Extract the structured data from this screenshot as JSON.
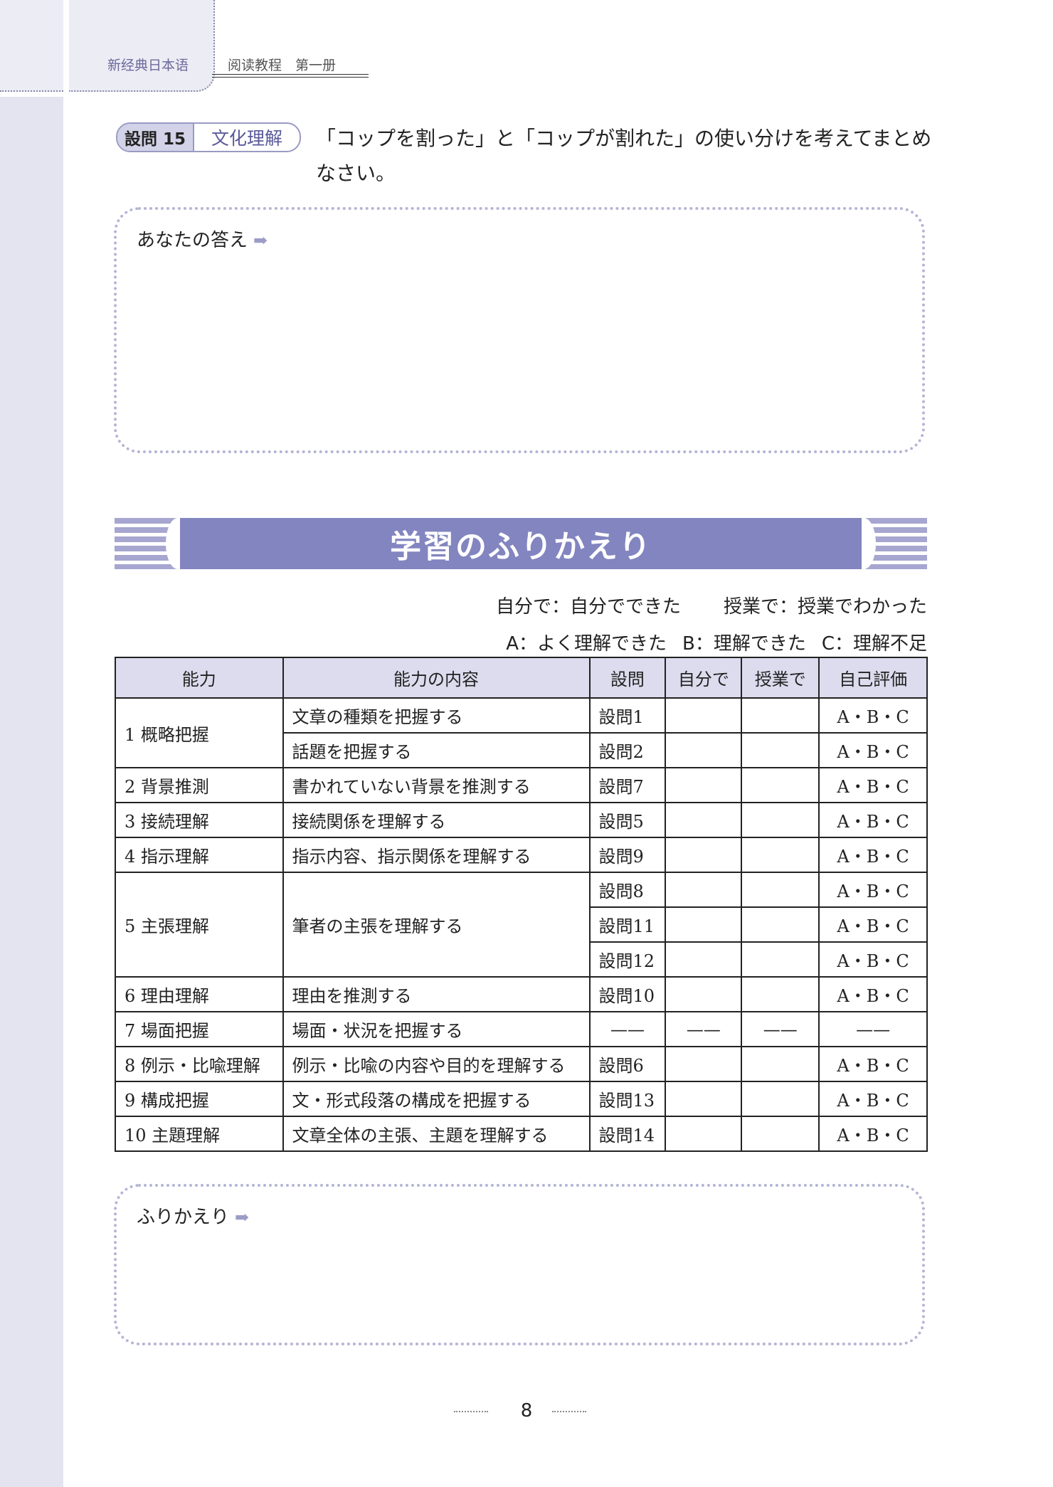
{
  "header": {
    "book_title": "新经典日本语",
    "subtitle": "阅读教程　第一册"
  },
  "question": {
    "number_label": "設問 15",
    "category": "文化理解",
    "text": "「コップを割った」と「コップが割れた」の使い分けを考えてまとめなさい。"
  },
  "answer_box": {
    "label": "あなたの答え",
    "arrow": "➡"
  },
  "section_title": "学習のふりかえり",
  "legend": {
    "self": "自分で：自分でできた",
    "class": "授業で：授業でわかった",
    "a": "A：よく理解できた",
    "b": "B：理解できた",
    "c": "C：理解不足"
  },
  "table": {
    "headers": [
      "能力",
      "能力の内容",
      "設問",
      "自分で",
      "授業で",
      "自己評価"
    ],
    "groups": [
      {
        "ability": "1  概略把握",
        "rows": [
          {
            "content": "文章の種類を把握する",
            "question": "設問1",
            "self": "",
            "class": "",
            "rating": "A・B・C"
          },
          {
            "content": "話題を把握する",
            "question": "設問2",
            "self": "",
            "class": "",
            "rating": "A・B・C"
          }
        ]
      },
      {
        "ability": "2  背景推測",
        "rows": [
          {
            "content": "書かれていない背景を推測する",
            "question": "設問7",
            "self": "",
            "class": "",
            "rating": "A・B・C"
          }
        ]
      },
      {
        "ability": "3  接続理解",
        "rows": [
          {
            "content": "接続関係を理解する",
            "question": "設問5",
            "self": "",
            "class": "",
            "rating": "A・B・C"
          }
        ]
      },
      {
        "ability": "4  指示理解",
        "rows": [
          {
            "content": "指示内容、指示関係を理解する",
            "question": "設問9",
            "self": "",
            "class": "",
            "rating": "A・B・C"
          }
        ]
      },
      {
        "ability": "5  主張理解",
        "content": "筆者の主張を理解する",
        "rows": [
          {
            "question": "設問8",
            "self": "",
            "class": "",
            "rating": "A・B・C"
          },
          {
            "question": "設問11",
            "self": "",
            "class": "",
            "rating": "A・B・C"
          },
          {
            "question": "設問12",
            "self": "",
            "class": "",
            "rating": "A・B・C"
          }
        ]
      },
      {
        "ability": "6  理由理解",
        "rows": [
          {
            "content": "理由を推測する",
            "question": "設問10",
            "self": "",
            "class": "",
            "rating": "A・B・C"
          }
        ]
      },
      {
        "ability": "7  場面把握",
        "rows": [
          {
            "content": "場面・状況を把握する",
            "question": "——",
            "self": "——",
            "class": "——",
            "rating": "——"
          }
        ]
      },
      {
        "ability": "8  例示・比喩理解",
        "rows": [
          {
            "content": "例示・比喩の内容や目的を理解する",
            "question": "設問6",
            "self": "",
            "class": "",
            "rating": "A・B・C"
          }
        ]
      },
      {
        "ability": "9  構成把握",
        "rows": [
          {
            "content": "文・形式段落の構成を把握する",
            "question": "設問13",
            "self": "",
            "class": "",
            "rating": "A・B・C"
          }
        ]
      },
      {
        "ability": "10  主題理解",
        "rows": [
          {
            "content": "文章全体の主張、主題を理解する",
            "question": "設問14",
            "self": "",
            "class": "",
            "rating": "A・B・C"
          }
        ]
      }
    ]
  },
  "reflection_box": {
    "label": "ふりかえり",
    "arrow": "➡"
  },
  "page_number": "8",
  "colors": {
    "accent": "#8385c0",
    "sidebar": "#e4e4f1",
    "header_fill": "#dcdcee"
  }
}
